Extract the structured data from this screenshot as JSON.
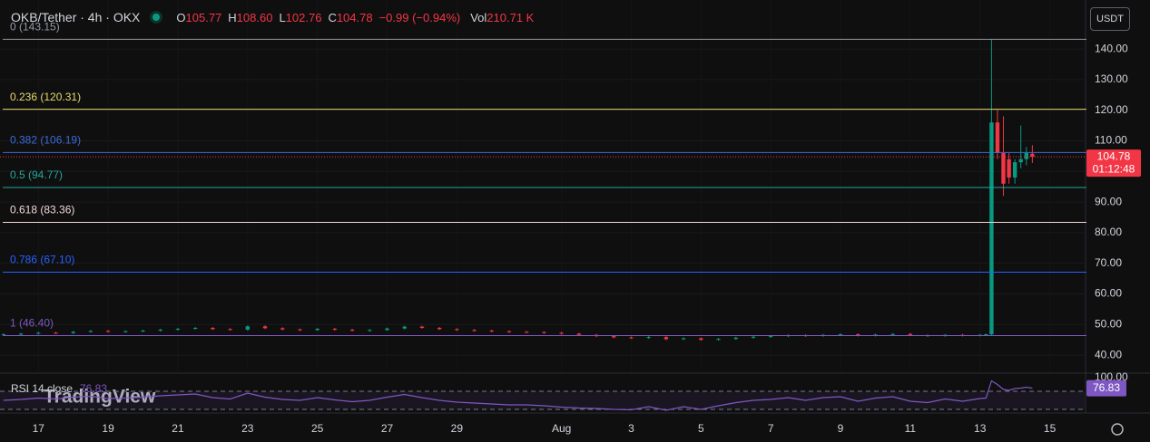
{
  "header": {
    "symbol": "OKB/Tether · 4h · OKX",
    "fields": [
      {
        "label": "O",
        "value": "105.77"
      },
      {
        "label": "H",
        "value": "108.60"
      },
      {
        "label": "L",
        "value": "102.76"
      },
      {
        "label": "C",
        "value": "104.78"
      }
    ],
    "change": "−0.99 (−0.94%)",
    "volume_label": "Vol",
    "volume": "210.71 K",
    "currency": "USDT",
    "countdown": "01:12:48",
    "watermark": "TradingView"
  },
  "chart_data": {
    "type": "candlestick",
    "up_color": "#089981",
    "down_color": "#f23645",
    "candles": {
      "x": [
        -1,
        -0.5,
        0,
        0.5,
        1,
        1.5,
        2,
        2.5,
        3,
        3.5,
        4,
        4.5,
        5,
        5.5,
        6,
        6.5,
        7,
        7.5,
        8,
        8.5,
        9,
        9.5,
        10,
        10.5,
        11,
        11.5,
        12,
        12.5,
        13,
        13.5,
        14,
        14.5,
        15,
        15.5,
        16,
        16.5,
        17,
        17.5,
        18,
        18.5,
        19,
        19.5,
        20,
        20.5,
        21,
        21.5,
        22,
        22.5,
        23,
        23.5,
        24,
        24.5,
        25,
        25.5,
        26,
        26.5,
        27,
        27.17,
        27.33,
        27.5,
        27.67,
        27.83,
        28,
        28.17,
        28.33,
        28.5
      ],
      "open": [
        46.6,
        46.8,
        47.0,
        47.3,
        47.2,
        47.6,
        47.9,
        47.7,
        47.8,
        48.0,
        48.3,
        48.6,
        48.9,
        48.5,
        48.3,
        49.4,
        48.8,
        48.4,
        48.2,
        48.6,
        48.3,
        48.0,
        48.2,
        48.7,
        49.3,
        48.9,
        48.5,
        48.2,
        48.0,
        47.8,
        47.6,
        47.5,
        47.3,
        47.0,
        46.6,
        46.2,
        45.8,
        45.6,
        45.9,
        45.2,
        45.5,
        45.0,
        45.3,
        45.7,
        46.0,
        46.2,
        46.5,
        46.3,
        46.6,
        46.8,
        46.4,
        46.7,
        46.9,
        46.5,
        46.3,
        46.6,
        46.4,
        46.6,
        46.8,
        116,
        106,
        104,
        98,
        103,
        104,
        105.77
      ],
      "high": [
        47.1,
        47.3,
        47.6,
        47.6,
        47.9,
        48.2,
        48.2,
        48.1,
        48.3,
        48.6,
        48.9,
        49.2,
        49.2,
        48.8,
        49.7,
        49.7,
        49.1,
        48.7,
        48.9,
        48.9,
        48.6,
        48.5,
        49.0,
        49.6,
        49.6,
        49.2,
        48.8,
        48.5,
        48.3,
        48.1,
        47.9,
        47.8,
        47.6,
        47.3,
        46.9,
        46.5,
        46.1,
        46.2,
        46.2,
        45.8,
        45.8,
        45.6,
        46.0,
        46.3,
        46.5,
        46.8,
        46.8,
        46.9,
        47.1,
        47.1,
        47.0,
        47.2,
        47.2,
        46.8,
        46.9,
        46.9,
        46.9,
        47.0,
        143.15,
        120.3,
        118,
        106,
        104,
        115,
        108,
        108.6
      ],
      "low": [
        46.3,
        46.5,
        46.7,
        46.9,
        46.9,
        47.3,
        47.4,
        47.4,
        47.5,
        47.7,
        48.0,
        48.3,
        48.2,
        48.0,
        48.0,
        48.5,
        48.1,
        47.9,
        47.9,
        48.0,
        47.7,
        47.7,
        47.9,
        48.4,
        48.6,
        48.2,
        47.9,
        47.7,
        47.5,
        47.3,
        47.2,
        47.0,
        46.7,
        46.3,
        45.9,
        45.5,
        45.3,
        45.3,
        44.9,
        44.9,
        44.7,
        44.7,
        45.0,
        45.4,
        45.7,
        45.9,
        46.0,
        46.0,
        46.3,
        46.1,
        46.1,
        46.4,
        46.2,
        46.0,
        46.0,
        46.1,
        46.1,
        46.4,
        46.5,
        104,
        92,
        96,
        96,
        101,
        102,
        102.76
      ],
      "close": [
        46.8,
        47.0,
        47.3,
        47.2,
        47.6,
        47.9,
        47.7,
        47.8,
        48.0,
        48.3,
        48.6,
        48.9,
        48.5,
        48.3,
        49.4,
        48.8,
        48.4,
        48.2,
        48.6,
        48.3,
        48.0,
        48.2,
        48.7,
        49.3,
        48.9,
        48.5,
        48.2,
        48.0,
        47.8,
        47.6,
        47.5,
        47.3,
        47.0,
        46.6,
        46.2,
        45.8,
        45.6,
        45.9,
        45.2,
        45.5,
        45.0,
        45.3,
        45.7,
        46.0,
        46.2,
        46.5,
        46.3,
        46.6,
        46.8,
        46.4,
        46.7,
        46.9,
        46.5,
        46.3,
        46.6,
        46.4,
        46.6,
        46.8,
        116,
        106,
        96,
        98,
        103,
        104,
        106,
        104.78
      ]
    },
    "xlim": [
      -1.1,
      30
    ],
    "xticks": [
      {
        "value": 0,
        "label": "17"
      },
      {
        "value": 2,
        "label": "19"
      },
      {
        "value": 4,
        "label": "21"
      },
      {
        "value": 6,
        "label": "23"
      },
      {
        "value": 8,
        "label": "25"
      },
      {
        "value": 10,
        "label": "27"
      },
      {
        "value": 12,
        "label": "29"
      },
      {
        "value": 15,
        "label": "Aug"
      },
      {
        "value": 17,
        "label": "3"
      },
      {
        "value": 19,
        "label": "5"
      },
      {
        "value": 21,
        "label": "7"
      },
      {
        "value": 23,
        "label": "9"
      },
      {
        "value": 25,
        "label": "11"
      },
      {
        "value": 27,
        "label": "13"
      },
      {
        "value": 29,
        "label": "15"
      }
    ],
    "ylim": [
      34.7,
      156
    ],
    "yticks": [
      {
        "value": 40,
        "label": "40.00"
      },
      {
        "value": 50,
        "label": "50.00"
      },
      {
        "value": 60,
        "label": "60.00"
      },
      {
        "value": 70,
        "label": "70.00"
      },
      {
        "value": 80,
        "label": "80.00"
      },
      {
        "value": 90,
        "label": "90.00"
      },
      {
        "value": 100,
        "label": "100.00"
      },
      {
        "value": 110,
        "label": "110.00"
      },
      {
        "value": 120,
        "label": "120.00"
      },
      {
        "value": 130,
        "label": "130.00"
      },
      {
        "value": 140,
        "label": "140.00"
      }
    ],
    "grid": true,
    "fib": [
      {
        "label": "0 (143.15)",
        "value": 143.15,
        "color": "#9598a1"
      },
      {
        "label": "0.236 (120.31)",
        "value": 120.31,
        "color": "#e8d96b"
      },
      {
        "label": "0.382 (106.19)",
        "value": 106.19,
        "color": "#3c6bd8"
      },
      {
        "label": "0.5 (94.77)",
        "value": 94.77,
        "color": "#26a69a"
      },
      {
        "label": "0.618 (83.36)",
        "value": 83.36,
        "color": "#f2d7d7"
      },
      {
        "label": "0.786 (67.10)",
        "value": 67.1,
        "color": "#2962ff"
      },
      {
        "label": "1 (46.40)",
        "value": 46.4,
        "color": "#7e57c2"
      }
    ],
    "rsi": {
      "label": "RSI 14 close",
      "color": "#7e57c2",
      "ylim": [
        0,
        100
      ],
      "bands": [
        70,
        30
      ],
      "yticks": [
        {
          "value": 100,
          "label": "100.00"
        }
      ],
      "values": [
        50,
        52,
        55,
        53,
        57,
        59,
        54,
        55,
        57,
        60,
        62,
        64,
        56,
        53,
        66,
        57,
        52,
        50,
        56,
        51,
        47,
        50,
        57,
        63,
        56,
        50,
        46,
        44,
        42,
        40,
        40,
        38,
        35,
        33,
        32,
        30,
        29,
        36,
        28,
        36,
        30,
        38,
        45,
        50,
        52,
        56,
        50,
        56,
        58,
        48,
        55,
        58,
        48,
        45,
        53,
        48,
        54,
        55,
        93,
        85,
        74,
        72,
        76,
        77,
        79,
        76.83
      ]
    }
  }
}
